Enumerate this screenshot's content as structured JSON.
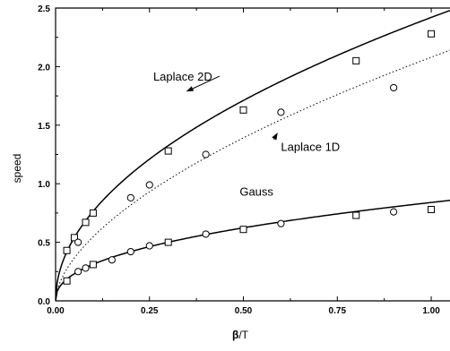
{
  "chart_data": {
    "type": "line",
    "title": "",
    "xlabel_symbol": "β",
    "xlabel_rest": "/T",
    "ylabel": "speed",
    "xlim": [
      0,
      1.05
    ],
    "ylim": [
      0,
      2.5
    ],
    "x_ticks": [
      {
        "value": 0.0,
        "label": "0.00"
      },
      {
        "value": 0.25,
        "label": "0.25"
      },
      {
        "value": 0.5,
        "label": "0.50"
      },
      {
        "value": 0.75,
        "label": "0.75"
      },
      {
        "value": 1.0,
        "label": "1.00"
      }
    ],
    "y_ticks": [
      {
        "value": 0.0,
        "label": "0.0"
      },
      {
        "value": 0.5,
        "label": "0.5"
      },
      {
        "value": 1.0,
        "label": "1.0"
      },
      {
        "value": 1.5,
        "label": "1.5"
      },
      {
        "value": 2.0,
        "label": "2.0"
      },
      {
        "value": 2.5,
        "label": "2.5"
      }
    ],
    "curves": [
      {
        "name": "Laplace 2D",
        "style": "solid",
        "coef": 2.42,
        "exponent": 0.5
      },
      {
        "name": "Laplace 1D",
        "style": "dotted",
        "coef": 2.08,
        "exponent": 0.58
      },
      {
        "name": "Gauss",
        "style": "solid",
        "coef": 0.84,
        "exponent": 0.43
      }
    ],
    "series": [
      {
        "marker": "square",
        "x": [
          0.03,
          0.05,
          0.08,
          0.1,
          0.3,
          0.5,
          0.8,
          1.0
        ],
        "y": [
          0.43,
          0.54,
          0.67,
          0.75,
          1.28,
          1.63,
          2.05,
          2.28
        ]
      },
      {
        "marker": "circle",
        "x": [
          0.06,
          0.2,
          0.25,
          0.4,
          0.6,
          0.9
        ],
        "y": [
          0.5,
          0.88,
          0.99,
          1.25,
          1.61,
          1.82
        ]
      },
      {
        "marker": "square",
        "x": [
          0.03,
          0.1,
          0.3,
          0.5,
          0.8,
          1.0
        ],
        "y": [
          0.17,
          0.31,
          0.5,
          0.61,
          0.73,
          0.78
        ]
      },
      {
        "marker": "circle",
        "x": [
          0.06,
          0.08,
          0.15,
          0.2,
          0.25,
          0.4,
          0.6,
          0.9
        ],
        "y": [
          0.25,
          0.28,
          0.35,
          0.42,
          0.47,
          0.57,
          0.66,
          0.76
        ]
      }
    ],
    "annotations": [
      {
        "text": "Laplace 2D",
        "x": 0.26,
        "y": 1.88,
        "arrow_to_x": 0.35,
        "arrow_to_y": 1.79
      },
      {
        "text": "Laplace 1D",
        "x": 0.6,
        "y": 1.28,
        "arrow_to_x": 0.59,
        "arrow_to_y": 1.43
      },
      {
        "text": "Gauss",
        "x": 0.49,
        "y": 0.9,
        "arrow_to_x": null,
        "arrow_to_y": null
      }
    ]
  }
}
